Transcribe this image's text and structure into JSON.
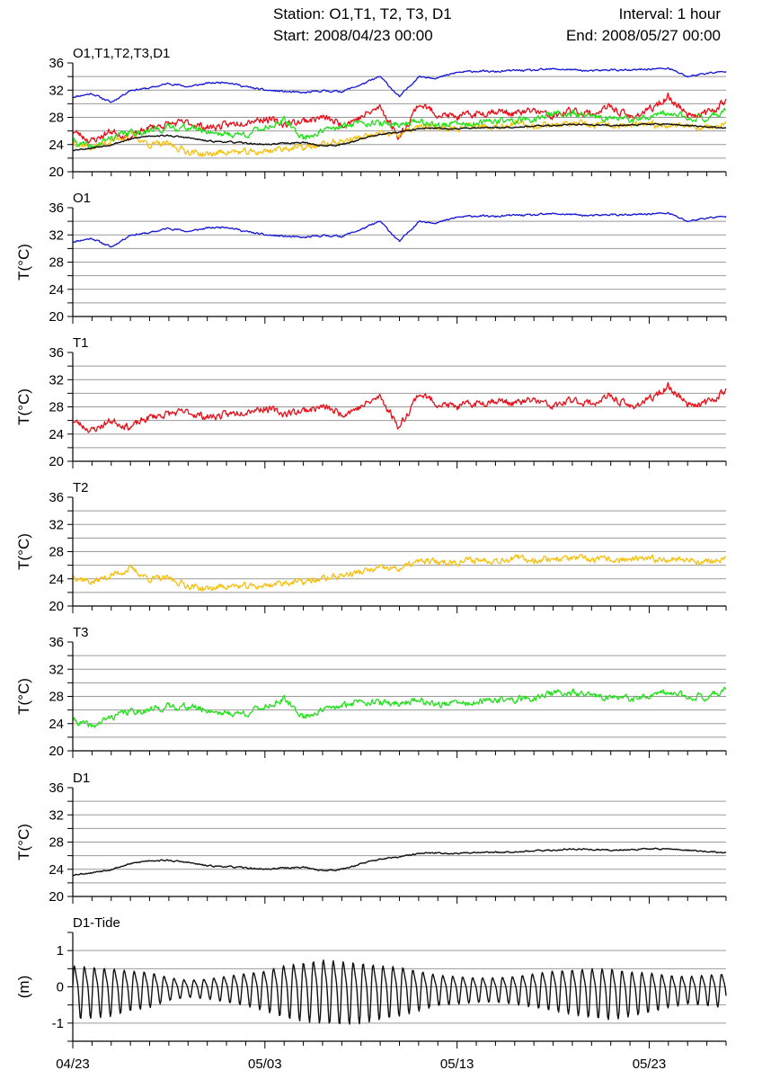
{
  "header": {
    "station": "Station: O1,T1, T2, T3, D1",
    "start": "Start: 2008/04/23 00:00",
    "interval": "Interval: 1 hour",
    "end": "End: 2008/05/27 00:00"
  },
  "colors": {
    "O1": "#1515d8",
    "T1": "#e8101a",
    "T2": "#f5c010",
    "T3": "#22e01a",
    "D1": "#111111",
    "D1-Tide": "#111111"
  },
  "chart_data": {
    "type": "line",
    "x_axis": {
      "start": "04/23",
      "end": "05/27",
      "tick_labels": [
        "04/23",
        "05/03",
        "05/13",
        "05/23"
      ]
    },
    "panels": [
      {
        "title": "O1,T1,T2,T3,D1",
        "ylabel": "",
        "ylim": [
          20,
          36
        ],
        "yticks": [
          "20",
          "24",
          "28",
          "32",
          "36"
        ],
        "series": [
          "O1",
          "T1",
          "T2",
          "T3",
          "D1"
        ]
      },
      {
        "title": "O1",
        "ylabel": "T(°C)",
        "ylim": [
          20,
          36
        ],
        "yticks": [
          "20",
          "24",
          "28",
          "32",
          "36"
        ],
        "series": [
          "O1"
        ]
      },
      {
        "title": "T1",
        "ylabel": "T(°C)",
        "ylim": [
          20,
          36
        ],
        "yticks": [
          "20",
          "24",
          "28",
          "32",
          "36"
        ],
        "series": [
          "T1"
        ]
      },
      {
        "title": "T2",
        "ylabel": "T(°C)",
        "ylim": [
          20,
          36
        ],
        "yticks": [
          "20",
          "24",
          "28",
          "32",
          "36"
        ],
        "series": [
          "T2"
        ]
      },
      {
        "title": "T3",
        "ylabel": "T(°C)",
        "ylim": [
          20,
          36
        ],
        "yticks": [
          "20",
          "24",
          "28",
          "32",
          "36"
        ],
        "series": [
          "T3"
        ]
      },
      {
        "title": "D1",
        "ylabel": "T(°C)",
        "ylim": [
          20,
          36
        ],
        "yticks": [
          "20",
          "24",
          "28",
          "32",
          "36"
        ],
        "series": [
          "D1"
        ]
      },
      {
        "title": "D1-Tide",
        "ylabel": "(m)",
        "ylim": [
          -1.5,
          1.5
        ],
        "yticks": [
          "-1",
          "0",
          "1"
        ],
        "series": [
          "D1-Tide"
        ]
      }
    ],
    "series_points": {
      "O1": {
        "x": [
          "04/23",
          "04/24",
          "04/25",
          "04/26",
          "04/27",
          "04/28",
          "04/29",
          "04/30",
          "05/01",
          "05/02",
          "05/03",
          "05/04",
          "05/05",
          "05/06",
          "05/07",
          "05/08",
          "05/09",
          "05/10",
          "05/11",
          "05/12",
          "05/13",
          "05/14",
          "05/15",
          "05/16",
          "05/17",
          "05/18",
          "05/19",
          "05/20",
          "05/21",
          "05/22",
          "05/23",
          "05/24",
          "05/25",
          "05/26",
          "05/27"
        ],
        "y": [
          31.0,
          31.5,
          30.2,
          32.0,
          32.3,
          33.0,
          32.5,
          33.0,
          33.2,
          32.5,
          32.0,
          31.8,
          31.6,
          31.9,
          31.8,
          32.8,
          34.0,
          31.0,
          34.0,
          33.8,
          34.6,
          34.8,
          34.7,
          34.9,
          34.9,
          35.1,
          35.0,
          34.8,
          35.0,
          34.9,
          35.1,
          35.2,
          34.0,
          34.5,
          34.7
        ]
      },
      "T1": {
        "x": [
          "04/23",
          "04/24",
          "04/25",
          "04/26",
          "04/27",
          "04/28",
          "04/29",
          "04/30",
          "05/01",
          "05/02",
          "05/03",
          "05/04",
          "05/05",
          "05/06",
          "05/07",
          "05/08",
          "05/09",
          "05/10",
          "05/11",
          "05/12",
          "05/13",
          "05/14",
          "05/15",
          "05/16",
          "05/17",
          "05/18",
          "05/19",
          "05/20",
          "05/21",
          "05/22",
          "05/23",
          "05/24",
          "05/25",
          "05/26",
          "05/27"
        ],
        "y": [
          26.0,
          24.5,
          26.0,
          25.0,
          26.5,
          27.0,
          27.2,
          26.5,
          26.8,
          27.5,
          27.8,
          27.0,
          27.5,
          28.0,
          27.0,
          28.0,
          29.5,
          25.0,
          30.0,
          28.5,
          28.0,
          28.5,
          29.0,
          28.5,
          29.0,
          28.0,
          29.0,
          28.5,
          29.5,
          28.0,
          29.0,
          31.0,
          28.5,
          28.5,
          30.5
        ]
      },
      "T2": {
        "x": [
          "04/23",
          "04/24",
          "04/25",
          "04/26",
          "04/27",
          "04/28",
          "04/29",
          "04/30",
          "05/01",
          "05/02",
          "05/03",
          "05/04",
          "05/05",
          "05/06",
          "05/07",
          "05/08",
          "05/09",
          "05/10",
          "05/11",
          "05/12",
          "05/13",
          "05/14",
          "05/15",
          "05/16",
          "05/17",
          "05/18",
          "05/19",
          "05/20",
          "05/21",
          "05/22",
          "05/23",
          "05/24",
          "05/25",
          "05/26",
          "05/27"
        ],
        "y": [
          24.5,
          23.5,
          24.5,
          25.5,
          24.0,
          24.0,
          23.0,
          22.5,
          23.0,
          22.8,
          23.0,
          23.5,
          23.5,
          24.0,
          24.5,
          25.0,
          25.5,
          25.5,
          26.5,
          26.5,
          26.5,
          26.8,
          26.8,
          27.0,
          26.8,
          27.0,
          27.0,
          26.8,
          26.8,
          26.8,
          26.8,
          27.0,
          26.8,
          26.5,
          26.8
        ]
      },
      "T3": {
        "x": [
          "04/23",
          "04/24",
          "04/25",
          "04/26",
          "04/27",
          "04/28",
          "04/29",
          "04/30",
          "05/01",
          "05/02",
          "05/03",
          "05/04",
          "05/05",
          "05/06",
          "05/07",
          "05/08",
          "05/09",
          "05/10",
          "05/11",
          "05/12",
          "05/13",
          "05/14",
          "05/15",
          "05/16",
          "05/17",
          "05/18",
          "05/19",
          "05/20",
          "05/21",
          "05/22",
          "05/23",
          "05/24",
          "05/25",
          "05/26",
          "05/27"
        ],
        "y": [
          24.5,
          23.5,
          25.0,
          25.8,
          26.0,
          26.5,
          26.5,
          26.0,
          25.5,
          25.5,
          26.5,
          27.5,
          25.0,
          26.0,
          26.5,
          27.5,
          27.0,
          27.0,
          27.5,
          26.8,
          27.0,
          27.0,
          27.5,
          27.5,
          27.8,
          28.5,
          28.5,
          28.0,
          28.0,
          27.5,
          28.0,
          28.5,
          28.0,
          28.0,
          29.0
        ]
      },
      "D1": {
        "x": [
          "04/23",
          "04/24",
          "04/25",
          "04/26",
          "04/27",
          "04/28",
          "04/29",
          "04/30",
          "05/01",
          "05/02",
          "05/03",
          "05/04",
          "05/05",
          "05/06",
          "05/07",
          "05/08",
          "05/09",
          "05/10",
          "05/11",
          "05/12",
          "05/13",
          "05/14",
          "05/15",
          "05/16",
          "05/17",
          "05/18",
          "05/19",
          "05/20",
          "05/21",
          "05/22",
          "05/23",
          "05/24",
          "05/25",
          "05/26",
          "05/27"
        ],
        "y": [
          23.2,
          23.5,
          24.0,
          24.8,
          25.3,
          25.3,
          25.0,
          24.5,
          24.4,
          24.2,
          24.0,
          24.2,
          24.3,
          23.8,
          24.0,
          24.8,
          25.5,
          25.8,
          26.3,
          26.4,
          26.3,
          26.5,
          26.5,
          26.6,
          26.7,
          26.8,
          27.0,
          26.9,
          26.8,
          26.9,
          27.0,
          27.0,
          26.8,
          26.6,
          26.4
        ]
      },
      "D1-Tide": {
        "x": [
          "04/23",
          "04/24",
          "04/25",
          "04/26",
          "04/27",
          "04/28",
          "04/29",
          "04/30",
          "05/01",
          "05/02",
          "05/03",
          "05/04",
          "05/05",
          "05/06",
          "05/07",
          "05/08",
          "05/09",
          "05/10",
          "05/11",
          "05/12",
          "05/13",
          "05/14",
          "05/15",
          "05/16",
          "05/17",
          "05/18",
          "05/19",
          "05/20",
          "05/21",
          "05/22",
          "05/23",
          "05/24",
          "05/25",
          "05/26",
          "05/27"
        ],
        "y_max": [
          0.8,
          0.75,
          0.7,
          0.6,
          0.55,
          0.35,
          0.25,
          0.3,
          0.4,
          0.5,
          0.6,
          0.8,
          0.9,
          1.0,
          0.95,
          0.9,
          0.8,
          0.75,
          0.6,
          0.45,
          0.4,
          0.35,
          0.35,
          0.4,
          0.5,
          0.6,
          0.65,
          0.7,
          0.7,
          0.6,
          0.55,
          0.45,
          0.4,
          0.45,
          0.5
        ],
        "y_min": [
          -0.95,
          -0.9,
          -0.85,
          -0.7,
          -0.6,
          -0.4,
          -0.3,
          -0.35,
          -0.45,
          -0.55,
          -0.7,
          -0.9,
          -1.0,
          -1.05,
          -1.1,
          -1.05,
          -0.95,
          -0.85,
          -0.7,
          -0.55,
          -0.5,
          -0.45,
          -0.45,
          -0.5,
          -0.6,
          -0.7,
          -0.8,
          -0.9,
          -0.95,
          -0.85,
          -0.75,
          -0.6,
          -0.5,
          -0.55,
          -0.6
        ]
      }
    }
  }
}
